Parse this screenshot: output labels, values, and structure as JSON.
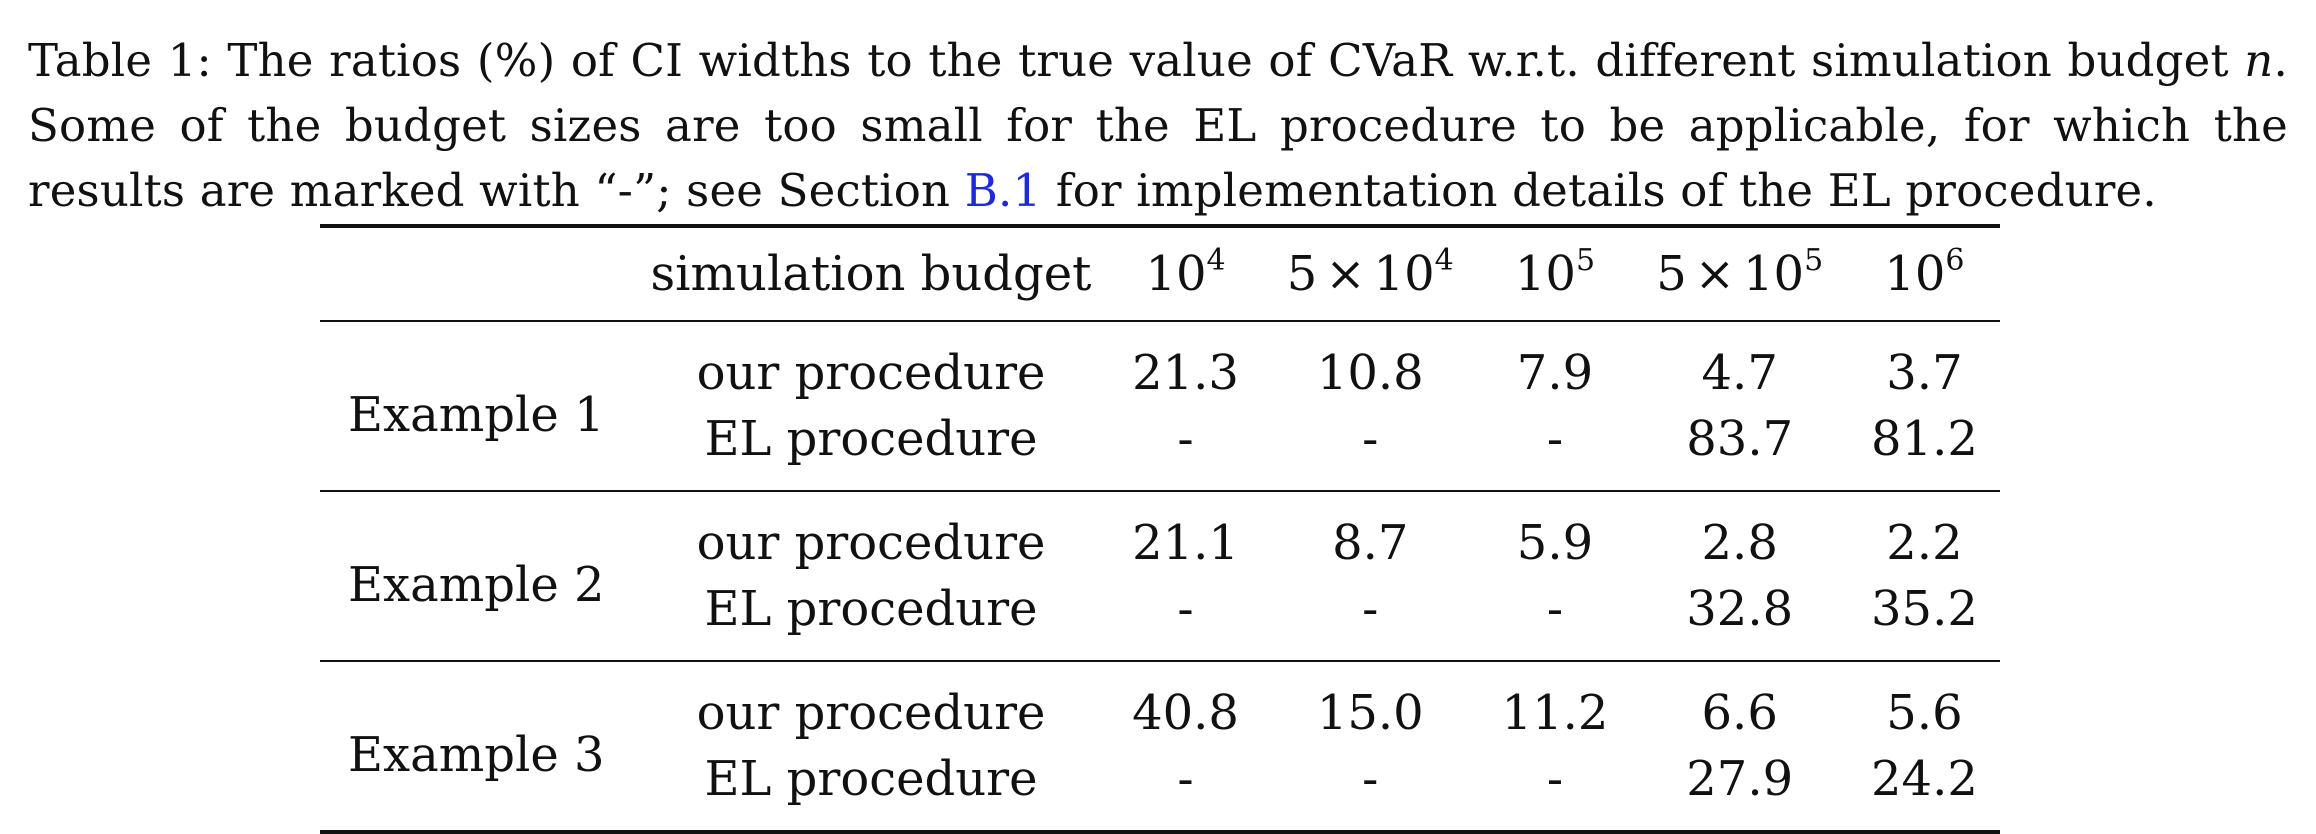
{
  "caption": {
    "label": "Table 1:",
    "text_1": "The ratios (%) of CI widths to the true value of CVaR w.r.t. different simulation budget",
    "var_n": "n",
    "text_2": ". Some of the budget sizes are too small for the EL procedure to be applicable, for which the results are marked with “-”; see Section",
    "link": "B.1",
    "text_3": "for implementation details of the EL procedure."
  },
  "table": {
    "header": {
      "row_label": "",
      "budget_label": "simulation budget",
      "columns": [
        {
          "coef": "",
          "base": "10",
          "exp": "4"
        },
        {
          "coef": "5",
          "times": "×",
          "base": "10",
          "exp": "4"
        },
        {
          "coef": "",
          "base": "10",
          "exp": "5"
        },
        {
          "coef": "5",
          "times": "×",
          "base": "10",
          "exp": "5"
        },
        {
          "coef": "",
          "base": "10",
          "exp": "6"
        }
      ]
    },
    "groups": [
      {
        "example": "Example 1",
        "rows": [
          {
            "procedure": "our procedure",
            "values": [
              "21.3",
              "10.8",
              "7.9",
              "4.7",
              "3.7"
            ]
          },
          {
            "procedure": "EL procedure",
            "values": [
              "-",
              "-",
              "-",
              "83.7",
              "81.2"
            ]
          }
        ]
      },
      {
        "example": "Example 2",
        "rows": [
          {
            "procedure": "our procedure",
            "values": [
              "21.1",
              "8.7",
              "5.9",
              "2.8",
              "2.2"
            ]
          },
          {
            "procedure": "EL procedure",
            "values": [
              "-",
              "-",
              "-",
              "32.8",
              "35.2"
            ]
          }
        ]
      },
      {
        "example": "Example 3",
        "rows": [
          {
            "procedure": "our procedure",
            "values": [
              "40.8",
              "15.0",
              "11.2",
              "6.6",
              "5.6"
            ]
          },
          {
            "procedure": "EL procedure",
            "values": [
              "-",
              "-",
              "-",
              "27.9",
              "24.2"
            ]
          }
        ]
      }
    ]
  },
  "colors": {
    "text": "#111111",
    "link": "#1d2bd6",
    "background": "#ffffff"
  }
}
